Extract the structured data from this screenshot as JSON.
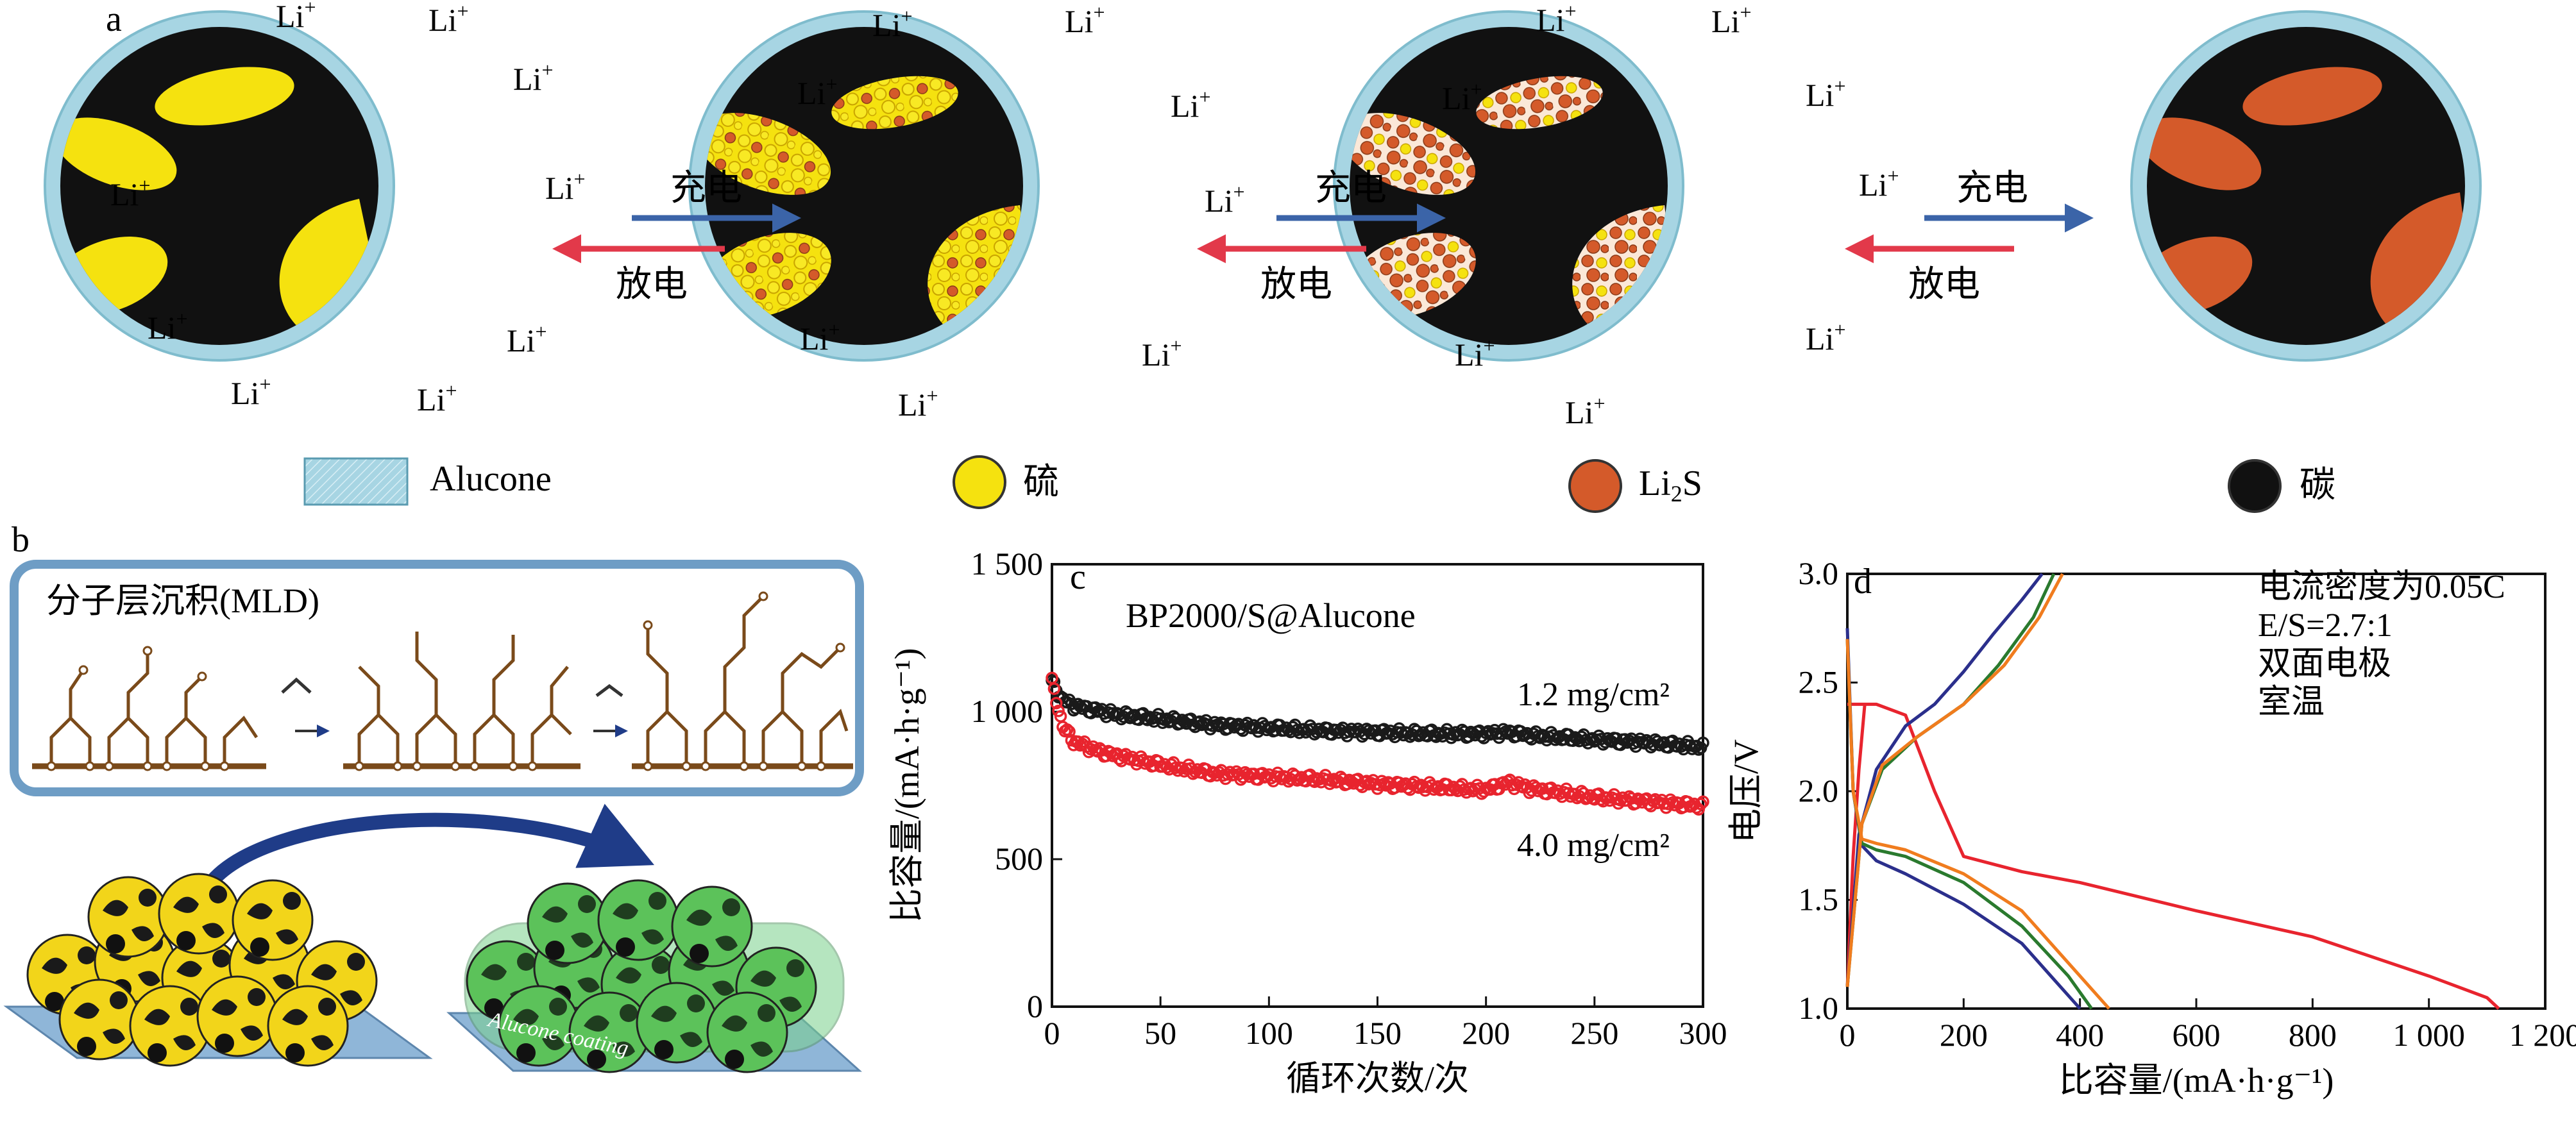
{
  "panel_a": {
    "label": "a",
    "li_ion": "Li",
    "li_sup": "+",
    "charge_label": "充电",
    "discharge_label": "放电",
    "legend": {
      "alucone": "Alucone",
      "sulfur": "硫",
      "li2s_main": "Li",
      "li2s_sub": "2",
      "li2s_tail": "S",
      "carbon": "碳"
    }
  },
  "panel_b": {
    "label": "b",
    "mld_title": "分子层沉积(MLD)",
    "coating_label": "Alucone coating"
  },
  "colors": {
    "alucone": "#a7d5e3",
    "sulfur": "#f5e20f",
    "li2s": "#d45a2a",
    "carbon": "#111111",
    "arrow_blue": "#3b64a8",
    "arrow_red": "#e2394a",
    "frame_blue": "#6e9dc5"
  },
  "chart_data": [
    {
      "panel": "c",
      "type": "scatter",
      "title": "BP2000/S@Alucone",
      "xlabel": "循环次数/次",
      "ylabel": "比容量/(mA·h·g⁻¹)",
      "xlim": [
        0,
        300
      ],
      "ylim": [
        0,
        1500
      ],
      "x_ticks": [
        "0",
        "50",
        "100",
        "150",
        "200",
        "250",
        "300"
      ],
      "y_ticks": [
        "0",
        "500",
        "1 000",
        "1 500"
      ],
      "grid": false,
      "series": [
        {
          "name": "1.2 mg/cm²",
          "color": "#1a1a1a",
          "x": [
            0,
            5,
            10,
            20,
            30,
            50,
            75,
            100,
            125,
            150,
            175,
            200,
            210,
            220,
            250,
            275,
            300
          ],
          "y": [
            1100,
            1040,
            1020,
            1005,
            990,
            975,
            955,
            945,
            935,
            930,
            925,
            925,
            930,
            920,
            905,
            895,
            880
          ]
        },
        {
          "name": "4.0 mg/cm²",
          "color": "#e8242e",
          "x": [
            0,
            5,
            10,
            20,
            30,
            50,
            75,
            100,
            125,
            150,
            175,
            200,
            210,
            220,
            250,
            275,
            300
          ],
          "y": [
            1100,
            950,
            900,
            870,
            850,
            820,
            790,
            780,
            770,
            755,
            745,
            735,
            760,
            740,
            710,
            695,
            680
          ]
        }
      ]
    },
    {
      "panel": "d",
      "type": "line",
      "xlabel": "比容量/(mA·h·g⁻¹)",
      "ylabel": "电压/V",
      "xlim": [
        0,
        1200
      ],
      "ylim": [
        1.0,
        3.0
      ],
      "x_ticks": [
        "0",
        "200",
        "400",
        "600",
        "800",
        "1 000",
        "1 200"
      ],
      "y_ticks": [
        "1.0",
        "1.5",
        "2.0",
        "2.5",
        "3.0"
      ],
      "annotation": [
        "电流密度为0.05C",
        "E/S=2.7:1",
        "双面电极",
        "室温"
      ],
      "grid": false,
      "series": [
        {
          "color": "#e8242e",
          "x": [
            0,
            50,
            100,
            150,
            200,
            300,
            400,
            600,
            800,
            1000,
            1100,
            1120
          ],
          "y": [
            2.4,
            2.4,
            2.35,
            2.0,
            1.7,
            1.63,
            1.58,
            1.45,
            1.33,
            1.15,
            1.05,
            1.0
          ]
        },
        {
          "color": "#e8242e",
          "x": [
            0,
            10,
            20,
            30
          ],
          "y": [
            1.1,
            1.7,
            2.1,
            2.4
          ]
        },
        {
          "color": "#2b2f8c",
          "x": [
            0,
            10,
            25,
            50,
            100,
            200,
            300,
            350,
            400
          ],
          "y": [
            2.75,
            2.0,
            1.75,
            1.68,
            1.62,
            1.48,
            1.3,
            1.15,
            1.0
          ]
        },
        {
          "color": "#2b2f8c",
          "x": [
            0,
            20,
            50,
            100,
            150,
            200,
            250,
            300,
            335
          ],
          "y": [
            1.1,
            1.8,
            2.1,
            2.3,
            2.4,
            2.55,
            2.72,
            2.88,
            3.0
          ]
        },
        {
          "color": "#2a7a2e",
          "x": [
            0,
            10,
            25,
            50,
            100,
            200,
            300,
            380,
            420
          ],
          "y": [
            2.7,
            2.0,
            1.76,
            1.73,
            1.7,
            1.58,
            1.38,
            1.15,
            1.0
          ]
        },
        {
          "color": "#2a7a2e",
          "x": [
            0,
            25,
            60,
            120,
            200,
            260,
            320,
            355
          ],
          "y": [
            1.1,
            1.85,
            2.1,
            2.25,
            2.4,
            2.58,
            2.8,
            3.0
          ]
        },
        {
          "color": "#f07c1e",
          "x": [
            0,
            10,
            25,
            50,
            100,
            200,
            300,
            400,
            450
          ],
          "y": [
            2.7,
            2.0,
            1.78,
            1.76,
            1.73,
            1.62,
            1.45,
            1.15,
            1.0
          ]
        },
        {
          "color": "#f07c1e",
          "x": [
            0,
            25,
            60,
            120,
            200,
            270,
            330,
            370
          ],
          "y": [
            1.1,
            1.85,
            2.12,
            2.25,
            2.4,
            2.58,
            2.8,
            3.0
          ]
        }
      ]
    }
  ]
}
